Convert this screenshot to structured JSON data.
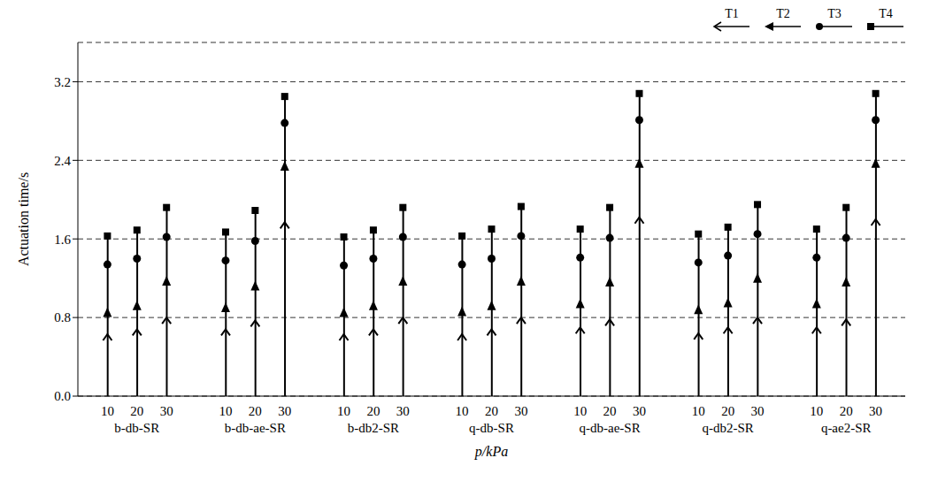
{
  "chart_data": {
    "type": "dot_stem",
    "x_label": "p/kPa",
    "y_label": "Actuation time/s",
    "groups": [
      "b-db-SR",
      "b-db-ae-SR",
      "b-db2-SR",
      "q-db-SR",
      "q-db-ae-SR",
      "q-db2-SR",
      "q-ae2-SR"
    ],
    "categories": [
      "10",
      "20",
      "30",
      "10",
      "20",
      "30",
      "10",
      "20",
      "30",
      "10",
      "20",
      "30",
      "10",
      "20",
      "30",
      "10",
      "20",
      "30",
      "10",
      "20",
      "30"
    ],
    "series": [
      {
        "name": "T1",
        "marker": "arrow",
        "color": "#000000",
        "values": [
          0.63,
          0.68,
          0.8,
          0.68,
          0.77,
          1.77,
          0.63,
          0.68,
          0.8,
          0.63,
          0.68,
          0.8,
          0.7,
          0.78,
          1.82,
          0.64,
          0.7,
          0.8,
          0.7,
          0.78,
          1.8
        ]
      },
      {
        "name": "T2",
        "marker": "triangle",
        "color": "#000000",
        "values": [
          0.85,
          0.92,
          1.17,
          0.9,
          1.12,
          2.34,
          0.85,
          0.92,
          1.17,
          0.86,
          0.92,
          1.17,
          0.94,
          1.16,
          2.37,
          0.88,
          0.95,
          1.2,
          0.94,
          1.16,
          2.37
        ]
      },
      {
        "name": "T3",
        "marker": "circle",
        "color": "#000000",
        "values": [
          1.34,
          1.4,
          1.62,
          1.38,
          1.58,
          2.78,
          1.33,
          1.4,
          1.62,
          1.34,
          1.4,
          1.63,
          1.41,
          1.61,
          2.81,
          1.36,
          1.43,
          1.65,
          1.41,
          1.61,
          2.81
        ]
      },
      {
        "name": "T4",
        "marker": "square",
        "color": "#000000",
        "values": [
          1.63,
          1.69,
          1.92,
          1.67,
          1.89,
          3.05,
          1.62,
          1.69,
          1.92,
          1.63,
          1.7,
          1.93,
          1.7,
          1.92,
          3.08,
          1.65,
          1.72,
          1.95,
          1.7,
          1.92,
          3.08
        ]
      }
    ],
    "ylim": [
      0,
      3.6
    ],
    "yticks": [
      {
        "value": 0,
        "label": "0.0"
      },
      0.8,
      1.6,
      2.4,
      3.2
    ],
    "grid": true,
    "legend": "top right"
  }
}
